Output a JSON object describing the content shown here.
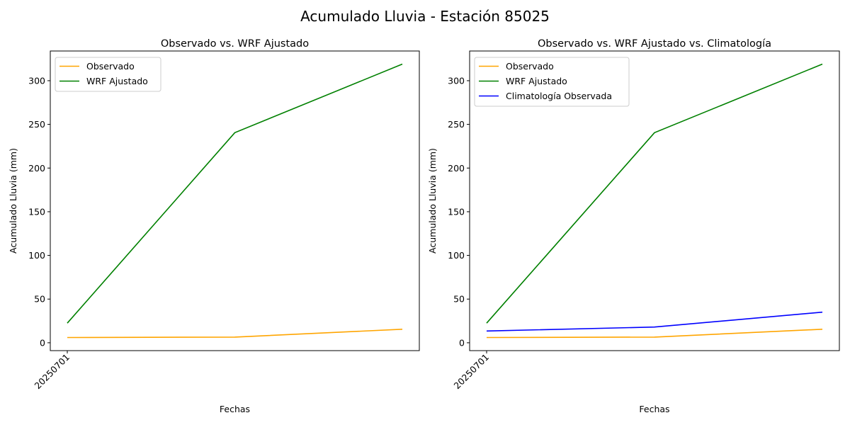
{
  "figure": {
    "title": "Acumulado Lluvia - Estación 85025"
  },
  "colors": {
    "observado": "#ffa500",
    "wrf": "#008000",
    "climatologia": "#0000ff"
  },
  "chart_data": [
    {
      "type": "line",
      "title": "Observado vs. WRF Ajustado",
      "xlabel": "Fechas",
      "ylabel": "Acumulado Lluvia (mm)",
      "x_tick_labels": [
        "20250701"
      ],
      "y_ticks": [
        0,
        50,
        100,
        150,
        200,
        250,
        300
      ],
      "ylim": [
        -9,
        334
      ],
      "legend_position": "upper-left",
      "series": [
        {
          "name": "Observado",
          "color": "#ffa500",
          "values": [
            6,
            6.5,
            15.5
          ]
        },
        {
          "name": "WRF Ajustado",
          "color": "#008000",
          "values": [
            22.5,
            240.5,
            319
          ]
        }
      ]
    },
    {
      "type": "line",
      "title": "Observado vs. WRF Ajustado vs. Climatología",
      "xlabel": "Fechas",
      "ylabel": "Acumulado Lluvia (mm)",
      "x_tick_labels": [
        "20250701"
      ],
      "y_ticks": [
        0,
        50,
        100,
        150,
        200,
        250,
        300
      ],
      "ylim": [
        -9,
        334
      ],
      "legend_position": "upper-left",
      "series": [
        {
          "name": "Observado",
          "color": "#ffa500",
          "values": [
            6,
            6.5,
            15.5
          ]
        },
        {
          "name": "WRF Ajustado",
          "color": "#008000",
          "values": [
            22.5,
            240.5,
            319
          ]
        },
        {
          "name": "Climatología Observada",
          "color": "#0000ff",
          "values": [
            13.5,
            18,
            35
          ]
        }
      ]
    }
  ]
}
